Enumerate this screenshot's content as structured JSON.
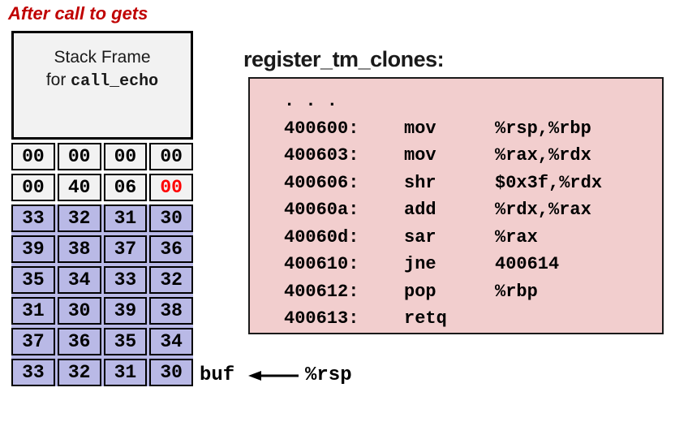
{
  "header": {
    "title": "After call to gets"
  },
  "stack": {
    "frame_title_line1": "Stack Frame",
    "frame_title_prefix": "for ",
    "frame_title_func": "call_echo",
    "rows": [
      {
        "style": "gray",
        "cells": [
          {
            "t": "00"
          },
          {
            "t": "00"
          },
          {
            "t": "00"
          },
          {
            "t": "00"
          }
        ]
      },
      {
        "style": "gray",
        "cells": [
          {
            "t": "00"
          },
          {
            "t": "40"
          },
          {
            "t": "06"
          },
          {
            "t": "00",
            "red": true
          }
        ]
      },
      {
        "style": "buf",
        "cells": [
          {
            "t": "33"
          },
          {
            "t": "32"
          },
          {
            "t": "31"
          },
          {
            "t": "30"
          }
        ]
      },
      {
        "style": "buf",
        "cells": [
          {
            "t": "39"
          },
          {
            "t": "38"
          },
          {
            "t": "37"
          },
          {
            "t": "36"
          }
        ]
      },
      {
        "style": "buf",
        "cells": [
          {
            "t": "35"
          },
          {
            "t": "34"
          },
          {
            "t": "33"
          },
          {
            "t": "32"
          }
        ]
      },
      {
        "style": "buf",
        "cells": [
          {
            "t": "31"
          },
          {
            "t": "30"
          },
          {
            "t": "39"
          },
          {
            "t": "38"
          }
        ]
      },
      {
        "style": "buf",
        "cells": [
          {
            "t": "37"
          },
          {
            "t": "36"
          },
          {
            "t": "35"
          },
          {
            "t": "34"
          }
        ]
      },
      {
        "style": "buf",
        "cells": [
          {
            "t": "33"
          },
          {
            "t": "32"
          },
          {
            "t": "31"
          },
          {
            "t": "30"
          }
        ]
      }
    ],
    "buf_label": "buf",
    "rsp_label": "%rsp"
  },
  "asm": {
    "title": "register_tm_clones:",
    "lines": [
      {
        "addr": ". . .",
        "op": "",
        "args": ""
      },
      {
        "addr": "400600:",
        "op": "mov",
        "args": "%rsp,%rbp"
      },
      {
        "addr": "400603:",
        "op": "mov",
        "args": "%rax,%rdx"
      },
      {
        "addr": "400606:",
        "op": "shr",
        "args": "$0x3f,%rdx"
      },
      {
        "addr": "40060a:",
        "op": "add",
        "args": "%rdx,%rax"
      },
      {
        "addr": "40060d:",
        "op": "sar",
        "args": "%rax"
      },
      {
        "addr": "400610:",
        "op": "jne",
        "args": "400614"
      },
      {
        "addr": "400612:",
        "op": "pop",
        "args": "%rbp"
      },
      {
        "addr": "400613:",
        "op": "retq",
        "args": ""
      }
    ]
  },
  "colors": {
    "title_red": "#c00000",
    "byte_red": "#fe0000",
    "frame_gray": "#f2f2f2",
    "buffer_lavender": "#b9b9e6",
    "asm_pink": "#f2cece",
    "border_black": "#000000"
  }
}
